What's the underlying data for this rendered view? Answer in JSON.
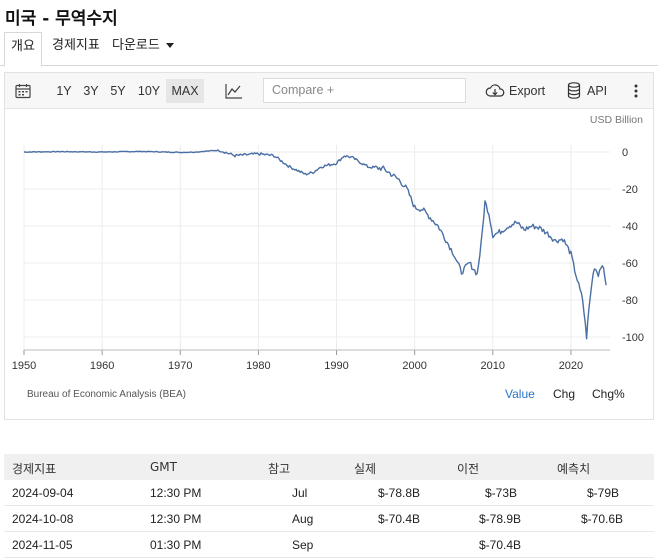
{
  "page": {
    "title": "미국 - 무역수지"
  },
  "tabs": [
    {
      "label": "개요",
      "active": true
    },
    {
      "label": "경제지표"
    },
    {
      "label": "다운로드"
    }
  ],
  "toolbar": {
    "ranges": [
      "1Y",
      "3Y",
      "5Y",
      "10Y",
      "MAX"
    ],
    "active_range": "MAX",
    "compare_placeholder": "Compare +",
    "export_label": "Export",
    "api_label": "API"
  },
  "chart_data": {
    "type": "line",
    "unit": "USD Billion",
    "source": "Bureau of Economic Analysis (BEA)",
    "xlim": [
      1950,
      2025
    ],
    "ylim": [
      -105,
      5
    ],
    "x_ticks": [
      1950,
      1960,
      1970,
      1980,
      1990,
      2000,
      2010,
      2020
    ],
    "y_ticks": [
      0,
      -20,
      -40,
      -60,
      -80,
      -100
    ],
    "series": [
      {
        "color": "#4a6fa5",
        "x": [
          1950,
          1955,
          1960,
          1965,
          1970,
          1972,
          1975,
          1977,
          1980,
          1982,
          1984,
          1986,
          1987,
          1988,
          1990,
          1991,
          1992,
          1994,
          1996,
          1998,
          1999,
          2000,
          2001,
          2003,
          2005,
          2006,
          2007,
          2008,
          2008.5,
          2009,
          2009.5,
          2010,
          2011,
          2012,
          2013,
          2014,
          2015,
          2016,
          2017,
          2018,
          2019,
          2020,
          2020.5,
          2021,
          2021.5,
          2022,
          2022.3,
          2022.7,
          2023,
          2023.5,
          2024,
          2024.5
        ],
        "y": [
          0,
          0.2,
          0,
          0.3,
          -0.2,
          0,
          1,
          -2,
          -1,
          -2,
          -8,
          -12,
          -11,
          -8,
          -6,
          -2,
          -3,
          -8,
          -9,
          -15,
          -20,
          -30,
          -31,
          -40,
          -55,
          -65,
          -60,
          -66,
          -50,
          -27,
          -33,
          -45,
          -43,
          -40,
          -38,
          -42,
          -40,
          -41,
          -44,
          -48,
          -47,
          -55,
          -64,
          -72,
          -80,
          -100,
          -85,
          -70,
          -62,
          -66,
          -60,
          -72
        ]
      }
    ],
    "legend_buttons": [
      "Value",
      "Chg",
      "Chg%"
    ],
    "active_view": "Value"
  },
  "calendar": {
    "headers": [
      "경제지표",
      "GMT",
      "참고",
      "실제",
      "이전",
      "예측치"
    ],
    "rows": [
      {
        "date": "2024-09-04",
        "time": "12:30 PM",
        "ref": "Jul",
        "actual": "$-78.8B",
        "previous": "$-73B",
        "forecast": "$-79B"
      },
      {
        "date": "2024-10-08",
        "time": "12:30 PM",
        "ref": "Aug",
        "actual": "$-70.4B",
        "previous": "$-78.9B",
        "forecast": "$-70.6B"
      },
      {
        "date": "2024-11-05",
        "time": "01:30 PM",
        "ref": "Sep",
        "actual": "",
        "previous": "$-70.4B",
        "forecast": ""
      }
    ]
  }
}
